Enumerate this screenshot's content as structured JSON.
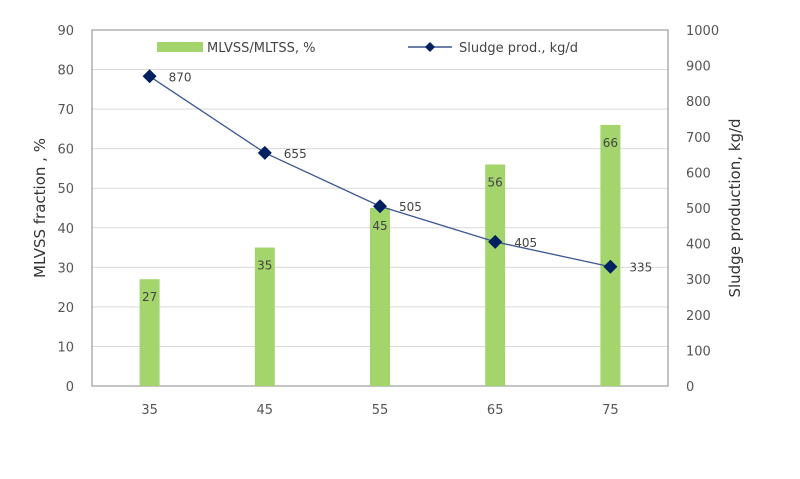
{
  "chart_data": {
    "type": "bar+line",
    "categories": [
      "35",
      "45",
      "55",
      "65",
      "75"
    ],
    "series": [
      {
        "name": "MLVSS/MLTSS, %",
        "type": "bar",
        "axis": "left",
        "values": [
          27,
          35,
          45,
          56,
          66
        ],
        "color": "#a4d46c"
      },
      {
        "name": "Sludge prod., kg/d",
        "type": "line",
        "axis": "right",
        "values": [
          870,
          655,
          505,
          405,
          335
        ],
        "color": "#3a5790",
        "marker_color": "#002060",
        "marker": "diamond"
      }
    ],
    "ylabel": "MLVSS fraction , %",
    "y2label": "Sludge production, kg/d",
    "ylim": [
      0,
      90
    ],
    "yticks": [
      0,
      10,
      20,
      30,
      40,
      50,
      60,
      70,
      80,
      90
    ],
    "y2lim": [
      0,
      1000
    ],
    "y2ticks": [
      0,
      100,
      200,
      300,
      400,
      500,
      600,
      700,
      800,
      900,
      1000
    ],
    "grid": true,
    "legend": "top"
  }
}
